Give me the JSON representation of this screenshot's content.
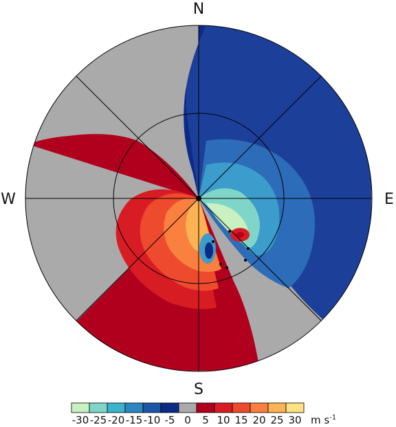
{
  "compass": {
    "north": "N",
    "south": "S",
    "east": "E",
    "west": "W"
  },
  "colorbar": {
    "colors": [
      "#c8f0c0",
      "#7fd6c8",
      "#3cb2cc",
      "#2c86c2",
      "#1c56a6",
      "#0d2a86",
      "#aaaaaa",
      "#b0001e",
      "#d81c24",
      "#ee4a2e",
      "#f9803e",
      "#fdb254",
      "#ffe084"
    ],
    "tick_labels": [
      "-30",
      "-25",
      "-20",
      "-15",
      "-10",
      "-5",
      "0",
      "5",
      "10",
      "15",
      "20",
      "25",
      "30"
    ],
    "units": "m s",
    "units_exponent": "-1"
  },
  "field_colors": {
    "approaching": "#1e4ea0",
    "receding": "#b0001e",
    "no_data": "#aaaaaa",
    "background": "#ffffff"
  }
}
